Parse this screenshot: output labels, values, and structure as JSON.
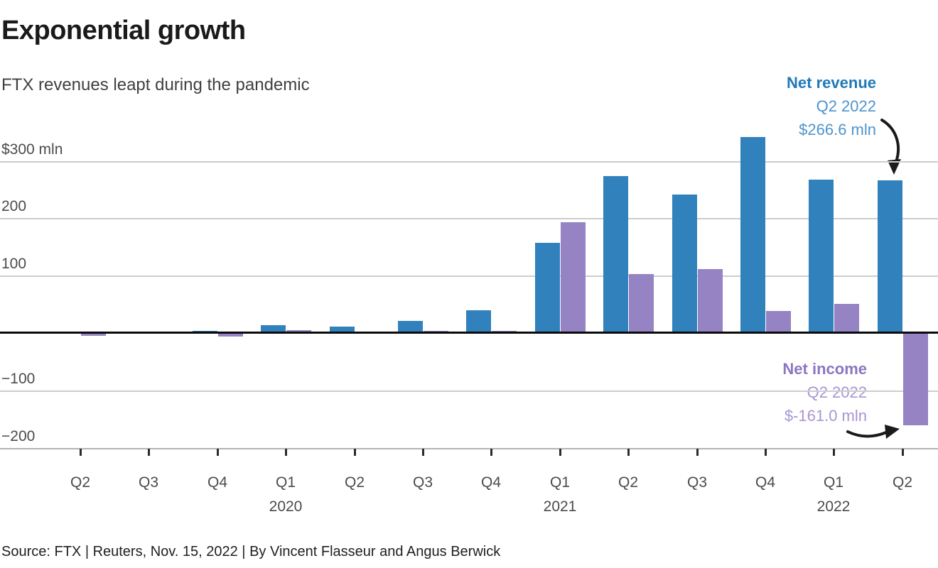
{
  "header": {
    "title": "Exponential growth",
    "subtitle": "FTX revenues leapt during the pandemic"
  },
  "source_line": "Source: FTX | Reuters, Nov. 15, 2022 | By Vincent Flasseur and Angus Berwick",
  "annotations": {
    "net_revenue": {
      "label": "Net revenue",
      "line1": "Q2 2022",
      "line2": "$266.6 mln"
    },
    "net_income": {
      "label": "Net income",
      "line1": "Q2 2022",
      "line2": "$-161.0 mln"
    }
  },
  "colors": {
    "revenue_bar": "#3181bd",
    "income_bar": "#9583c3",
    "revenue_label_bold": "#1e79b8",
    "revenue_label_light": "#4e94cd",
    "income_label_bold": "#8c76c1",
    "income_label_light": "#a895d3",
    "gridline": "#cdcdcd",
    "zero_line": "#0b0b0b",
    "axis_line": "#b3b3b3",
    "arrow": "#1a1a1a"
  },
  "chart_data": {
    "type": "bar",
    "title": "Exponential growth",
    "subtitle": "FTX revenues leapt during the pandemic",
    "unit": "mln USD",
    "categories": [
      "Q2 2019",
      "Q3 2019",
      "Q4 2019",
      "Q1 2020",
      "Q2 2020",
      "Q3 2020",
      "Q4 2020",
      "Q1 2021",
      "Q2 2021",
      "Q3 2021",
      "Q4 2021",
      "Q1 2022",
      "Q2 2022"
    ],
    "x_tick_labels": [
      "Q2",
      "Q3",
      "Q4",
      "Q1",
      "Q2",
      "Q3",
      "Q4",
      "Q1",
      "Q2",
      "Q3",
      "Q4",
      "Q1",
      "Q2"
    ],
    "year_labels": [
      {
        "index": 3,
        "year": "2020"
      },
      {
        "index": 7,
        "year": "2021"
      },
      {
        "index": 11,
        "year": "2022"
      }
    ],
    "series": [
      {
        "name": "Net revenue",
        "values": [
          1,
          3,
          4,
          14,
          11,
          21,
          39,
          157,
          273,
          241,
          341,
          267,
          266.6
        ]
      },
      {
        "name": "Net income",
        "values": [
          -5,
          0,
          -6,
          5,
          2,
          4,
          4,
          193,
          103,
          112,
          38,
          51,
          -161.0
        ]
      }
    ],
    "highlight": {
      "quarter": "Q2 2022",
      "net_revenue": 266.6,
      "net_income": -161.0
    },
    "y_ticks": [
      {
        "value": 300,
        "label": "$300 mln"
      },
      {
        "value": 200,
        "label": "200"
      },
      {
        "value": 100,
        "label": "100"
      },
      {
        "value": -100,
        "label": "−100"
      },
      {
        "value": -200,
        "label": "−200"
      }
    ],
    "ylim": [
      -215,
      355
    ],
    "grid": true,
    "legend_position": "inline-annotations"
  }
}
